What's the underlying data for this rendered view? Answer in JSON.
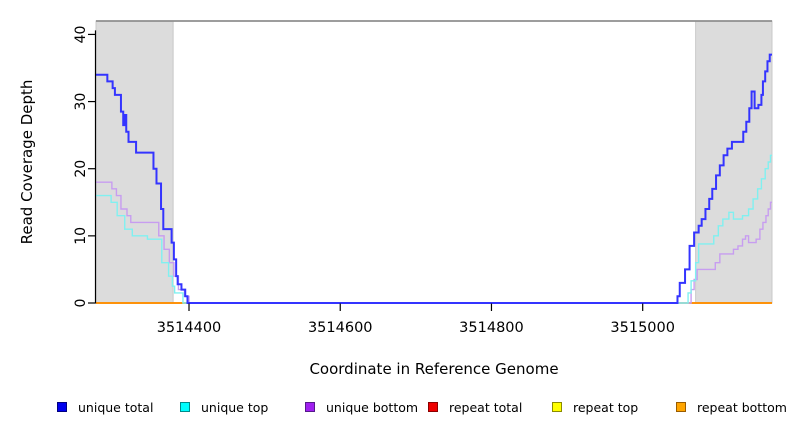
{
  "chart_data": {
    "type": "line",
    "title": "",
    "xlabel": "Coordinate in Reference Genome",
    "ylabel": "Read Coverage Depth",
    "xlim": [
      3514277,
      3515171
    ],
    "ylim": [
      0,
      42
    ],
    "x_ticks": [
      3514400,
      3514600,
      3514800,
      3515000
    ],
    "y_ticks": [
      0,
      10,
      20,
      30,
      40
    ],
    "grid": false,
    "legend_position": "bottom",
    "step_mode": "after",
    "shaded_regions": [
      {
        "name": "left-repeat-region",
        "x0": 3514277,
        "x1": 3514379,
        "fill": "#dcdcdc",
        "border": "#c9c9c9"
      },
      {
        "name": "right-repeat-region",
        "x0": 3515070,
        "x1": 3515171,
        "fill": "#dcdcdc",
        "border": "#c9c9c9"
      }
    ],
    "top_line": {
      "y": 42,
      "color": "#8f8f8f"
    },
    "series": [
      {
        "name": "repeat total",
        "color": "#cc0000",
        "width": 1.4,
        "points": [
          [
            3514277,
            0
          ]
        ]
      },
      {
        "name": "repeat top",
        "color": "#ffff33",
        "width": 1.4,
        "points": [
          [
            3514277,
            0
          ]
        ]
      },
      {
        "name": "repeat bottom",
        "color": "#ff8c00",
        "width": 1.7,
        "points": [
          [
            3514277,
            0
          ]
        ]
      },
      {
        "name": "unique bottom",
        "color": "#c79df0",
        "width": 1.4,
        "points": [
          [
            3514277,
            18
          ],
          [
            3514298,
            17
          ],
          [
            3514304,
            16
          ],
          [
            3514310,
            14
          ],
          [
            3514318,
            13
          ],
          [
            3514323,
            12
          ],
          [
            3514360,
            10
          ],
          [
            3514367,
            8
          ],
          [
            3514374,
            6
          ],
          [
            3514380,
            4
          ],
          [
            3514386,
            2
          ],
          [
            3514394,
            1
          ],
          [
            3514400,
            0
          ],
          [
            3515064,
            2
          ],
          [
            3515068,
            3.5
          ],
          [
            3515072,
            5
          ],
          [
            3515096,
            6
          ],
          [
            3515102,
            7.3
          ],
          [
            3515120,
            8
          ],
          [
            3515126,
            8.5
          ],
          [
            3515132,
            9.5
          ],
          [
            3515136,
            10
          ],
          [
            3515140,
            9
          ],
          [
            3515150,
            9.5
          ],
          [
            3515155,
            11
          ],
          [
            3515159,
            12
          ],
          [
            3515163,
            13
          ],
          [
            3515166,
            14
          ],
          [
            3515169,
            15
          ]
        ]
      },
      {
        "name": "unique top",
        "color": "#80f0f0",
        "width": 1.4,
        "points": [
          [
            3514277,
            16
          ],
          [
            3514297,
            15
          ],
          [
            3514305,
            13
          ],
          [
            3514315,
            11
          ],
          [
            3514325,
            10
          ],
          [
            3514345,
            9.5
          ],
          [
            3514364,
            6
          ],
          [
            3514373,
            4
          ],
          [
            3514378,
            2.5
          ],
          [
            3514381,
            1.5
          ],
          [
            3514392,
            0
          ],
          [
            3515060,
            1.5
          ],
          [
            3515064,
            3.3
          ],
          [
            3515070,
            6
          ],
          [
            3515074,
            8.8
          ],
          [
            3515094,
            10
          ],
          [
            3515100,
            11.5
          ],
          [
            3515106,
            12.5
          ],
          [
            3515114,
            13.5
          ],
          [
            3515120,
            12.5
          ],
          [
            3515132,
            13
          ],
          [
            3515140,
            14
          ],
          [
            3515146,
            15.5
          ],
          [
            3515152,
            17
          ],
          [
            3515157,
            18.5
          ],
          [
            3515162,
            20
          ],
          [
            3515166,
            21
          ],
          [
            3515169,
            22
          ]
        ]
      },
      {
        "name": "unique total",
        "color": "#3434ff",
        "width": 2,
        "points": [
          [
            3514277,
            34
          ],
          [
            3514292,
            33
          ],
          [
            3514299,
            32
          ],
          [
            3514302,
            31
          ],
          [
            3514310,
            28.5
          ],
          [
            3514313,
            26.5
          ],
          [
            3514315,
            28
          ],
          [
            3514317,
            25.5
          ],
          [
            3514320,
            24
          ],
          [
            3514330,
            22.4
          ],
          [
            3514353,
            20
          ],
          [
            3514357,
            17.8
          ],
          [
            3514363,
            14
          ],
          [
            3514366,
            11
          ],
          [
            3514377,
            9
          ],
          [
            3514380,
            6.5
          ],
          [
            3514383,
            4
          ],
          [
            3514385,
            2.8
          ],
          [
            3514390,
            2
          ],
          [
            3514395,
            1
          ],
          [
            3514398,
            0
          ],
          [
            3515046,
            1
          ],
          [
            3515049,
            3
          ],
          [
            3515056,
            5
          ],
          [
            3515062,
            8.5
          ],
          [
            3515068,
            10.5
          ],
          [
            3515074,
            11.5
          ],
          [
            3515078,
            12.5
          ],
          [
            3515083,
            14
          ],
          [
            3515088,
            15.5
          ],
          [
            3515092,
            17
          ],
          [
            3515097,
            19
          ],
          [
            3515102,
            20.5
          ],
          [
            3515107,
            22
          ],
          [
            3515112,
            23
          ],
          [
            3515118,
            24
          ],
          [
            3515133,
            25.5
          ],
          [
            3515137,
            27
          ],
          [
            3515141,
            29
          ],
          [
            3515144,
            31.5
          ],
          [
            3515148,
            29
          ],
          [
            3515153,
            29.5
          ],
          [
            3515157,
            31
          ],
          [
            3515159,
            33
          ],
          [
            3515162,
            34.5
          ],
          [
            3515165,
            36
          ],
          [
            3515168,
            37
          ]
        ]
      }
    ]
  },
  "legend": {
    "items": [
      {
        "label": "unique total",
        "fill": "#0000ee",
        "border": "#000080"
      },
      {
        "label": "unique top",
        "fill": "#00ffff",
        "border": "#008b8b"
      },
      {
        "label": "unique bottom",
        "fill": "#a020f0",
        "border": "#551a8b"
      },
      {
        "label": "repeat total",
        "fill": "#ee0000",
        "border": "#8b0000"
      },
      {
        "label": "repeat top",
        "fill": "#ffff00",
        "border": "#8b8b00"
      },
      {
        "label": "repeat bottom",
        "fill": "#ffa500",
        "border": "#995c00"
      }
    ]
  }
}
